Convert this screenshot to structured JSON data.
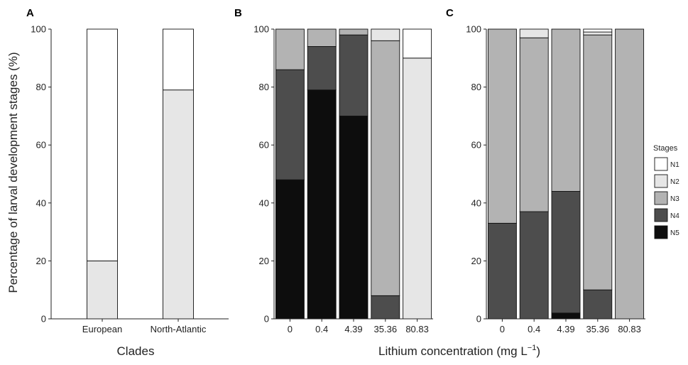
{
  "figure": {
    "ylabel": "Percentage of larval development stages (%)",
    "xlabel_clades": "Clades",
    "xlabel_lithium_prefix": "Lithium concentration (mg L",
    "xlabel_lithium_exponent": "−1",
    "xlabel_lithium_suffix": ")"
  },
  "legend": {
    "title": "Stages",
    "placement": "right",
    "items": [
      {
        "label": "N1",
        "color": "#ffffff"
      },
      {
        "label": "N2",
        "color": "#e6e6e6"
      },
      {
        "label": "N3",
        "color": "#b3b3b3"
      },
      {
        "label": "N4",
        "color": "#4d4d4d"
      },
      {
        "label": "N5",
        "color": "#0d0d0d"
      }
    ]
  },
  "chart_data": [
    {
      "panel": "A",
      "type": "bar",
      "stacked": true,
      "categories": [
        "European",
        "North-Atlantic"
      ],
      "series": [
        {
          "name": "N5",
          "values": [
            0,
            0
          ]
        },
        {
          "name": "N4",
          "values": [
            0,
            0
          ]
        },
        {
          "name": "N3",
          "values": [
            0,
            0
          ]
        },
        {
          "name": "N2",
          "values": [
            20,
            79
          ]
        },
        {
          "name": "N1",
          "values": [
            80,
            21
          ]
        }
      ],
      "ylim": [
        0,
        100
      ],
      "yticks": [
        "0",
        "20",
        "40",
        "60",
        "80",
        "100"
      ],
      "grid": false
    },
    {
      "panel": "B",
      "type": "bar",
      "stacked": true,
      "categories": [
        "0",
        "0.4",
        "4.39",
        "35.36",
        "80.83"
      ],
      "series": [
        {
          "name": "N5",
          "values": [
            48,
            79,
            70,
            0,
            0
          ]
        },
        {
          "name": "N4",
          "values": [
            38,
            15,
            28,
            8,
            0
          ]
        },
        {
          "name": "N3",
          "values": [
            14,
            6,
            2,
            88,
            0
          ]
        },
        {
          "name": "N2",
          "values": [
            0,
            0,
            0,
            4,
            90
          ]
        },
        {
          "name": "N1",
          "values": [
            0,
            0,
            0,
            0,
            10
          ]
        }
      ],
      "ylim": [
        0,
        100
      ],
      "yticks": [
        "0",
        "20",
        "40",
        "60",
        "80",
        "100"
      ],
      "grid": false
    },
    {
      "panel": "C",
      "type": "bar",
      "stacked": true,
      "categories": [
        "0",
        "0.4",
        "4.39",
        "35.36",
        "80.83"
      ],
      "series": [
        {
          "name": "N5",
          "values": [
            0,
            0,
            2,
            0,
            0
          ]
        },
        {
          "name": "N4",
          "values": [
            33,
            37,
            42,
            10,
            0
          ]
        },
        {
          "name": "N3",
          "values": [
            67,
            60,
            56,
            88,
            100
          ]
        },
        {
          "name": "N2",
          "values": [
            0,
            3,
            0,
            1,
            0
          ]
        },
        {
          "name": "N1",
          "values": [
            0,
            0,
            0,
            1,
            0
          ]
        }
      ],
      "ylim": [
        0,
        100
      ],
      "yticks": [
        "0",
        "20",
        "40",
        "60",
        "80",
        "100"
      ],
      "grid": false
    }
  ]
}
